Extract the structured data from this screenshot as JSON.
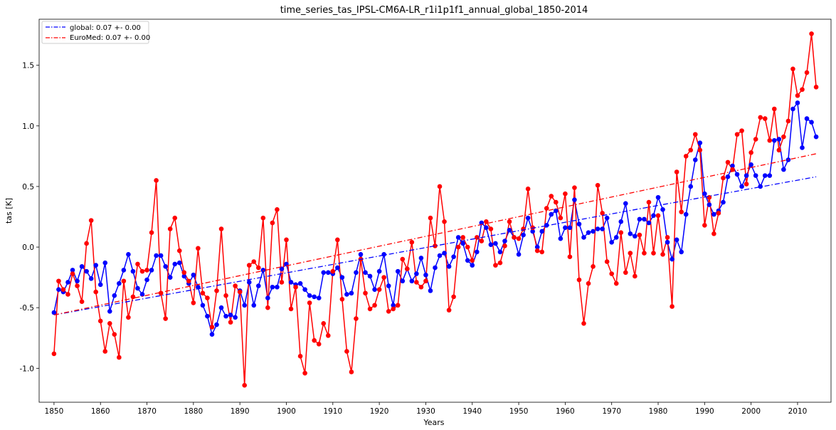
{
  "chart_data": {
    "type": "line",
    "title": "time_series_tas_IPSL-CM6A-LR_r1i1p1f1_annual_global_1850-2014",
    "xlabel": "Years",
    "ylabel": "tas [K]",
    "xlim": [
      1846.8,
      2017.2
    ],
    "ylim": [
      -1.28,
      1.88
    ],
    "x_ticks": [
      1850,
      1860,
      1870,
      1880,
      1890,
      1900,
      1910,
      1920,
      1930,
      1940,
      1950,
      1960,
      1970,
      1980,
      1990,
      2000,
      2010
    ],
    "y_ticks": [
      -1.0,
      -0.5,
      0.0,
      0.5,
      1.0,
      1.5
    ],
    "grid": false,
    "legend_position": "top-left",
    "x_start": 1850,
    "series": [
      {
        "name": "global",
        "color": "#0000ff",
        "values": [
          -0.54,
          -0.35,
          -0.37,
          -0.29,
          -0.19,
          -0.28,
          -0.16,
          -0.2,
          -0.26,
          -0.15,
          -0.31,
          -0.13,
          -0.53,
          -0.4,
          -0.3,
          -0.19,
          -0.06,
          -0.2,
          -0.34,
          -0.39,
          -0.27,
          -0.19,
          -0.07,
          -0.07,
          -0.16,
          -0.25,
          -0.14,
          -0.13,
          -0.24,
          -0.3,
          -0.23,
          -0.33,
          -0.48,
          -0.57,
          -0.72,
          -0.64,
          -0.5,
          -0.57,
          -0.56,
          -0.58,
          -0.36,
          -0.48,
          -0.29,
          -0.48,
          -0.32,
          -0.19,
          -0.42,
          -0.33,
          -0.33,
          -0.18,
          -0.14,
          -0.29,
          -0.31,
          -0.3,
          -0.35,
          -0.4,
          -0.41,
          -0.42,
          -0.21,
          -0.21,
          -0.22,
          -0.17,
          -0.25,
          -0.39,
          -0.38,
          -0.21,
          -0.06,
          -0.21,
          -0.24,
          -0.35,
          -0.2,
          -0.06,
          -0.32,
          -0.48,
          -0.2,
          -0.28,
          -0.18,
          -0.28,
          -0.22,
          -0.09,
          -0.23,
          -0.36,
          -0.17,
          -0.07,
          -0.05,
          -0.16,
          -0.08,
          0.08,
          0.03,
          -0.11,
          -0.15,
          -0.04,
          0.2,
          0.16,
          0.02,
          0.03,
          -0.04,
          0.05,
          0.14,
          0.08,
          -0.06,
          0.1,
          0.24,
          0.13,
          0.0,
          0.13,
          0.18,
          0.27,
          0.3,
          0.07,
          0.16,
          0.16,
          0.39,
          0.19,
          0.08,
          0.12,
          0.13,
          0.15,
          0.15,
          0.24,
          0.04,
          0.08,
          0.21,
          0.36,
          0.11,
          0.09,
          0.23,
          0.23,
          0.2,
          0.26,
          0.41,
          0.31,
          0.04,
          -0.1,
          0.06,
          -0.04,
          0.27,
          0.5,
          0.72,
          0.86,
          0.44,
          0.35,
          0.27,
          0.3,
          0.37,
          0.58,
          0.67,
          0.6,
          0.5,
          0.59,
          0.68,
          0.59,
          0.5,
          0.59,
          0.59,
          0.88,
          0.89,
          0.64,
          0.72,
          1.14,
          1.19,
          0.82,
          1.06,
          1.03,
          0.91
        ]
      },
      {
        "name": "EuroMed",
        "color": "#ff0000",
        "values": [
          -0.88,
          -0.28,
          -0.35,
          -0.39,
          -0.22,
          -0.32,
          -0.45,
          0.03,
          0.22,
          -0.37,
          -0.61,
          -0.86,
          -0.63,
          -0.72,
          -0.91,
          -0.28,
          -0.58,
          -0.41,
          -0.14,
          -0.2,
          -0.19,
          0.12,
          0.55,
          -0.38,
          -0.59,
          0.15,
          0.24,
          -0.03,
          -0.21,
          -0.28,
          -0.46,
          -0.01,
          -0.38,
          -0.42,
          -0.66,
          -0.36,
          0.15,
          -0.4,
          -0.62,
          -0.32,
          -0.37,
          -1.14,
          -0.15,
          -0.12,
          -0.17,
          0.24,
          -0.5,
          0.2,
          0.31,
          -0.29,
          0.06,
          -0.51,
          -0.33,
          -0.9,
          -1.04,
          -0.46,
          -0.77,
          -0.8,
          -0.63,
          -0.73,
          -0.2,
          0.06,
          -0.43,
          -0.86,
          -1.03,
          -0.59,
          -0.1,
          -0.38,
          -0.51,
          -0.48,
          -0.35,
          -0.25,
          -0.53,
          -0.51,
          -0.48,
          -0.1,
          -0.18,
          0.04,
          -0.29,
          -0.33,
          -0.28,
          0.24,
          0.01,
          0.5,
          0.21,
          -0.52,
          -0.41,
          0.0,
          0.08,
          0.0,
          -0.11,
          0.08,
          0.05,
          0.21,
          0.15,
          -0.15,
          -0.13,
          0.01,
          0.21,
          0.08,
          0.07,
          0.15,
          0.48,
          0.16,
          -0.03,
          -0.04,
          0.32,
          0.42,
          0.37,
          0.24,
          0.44,
          -0.08,
          0.49,
          -0.27,
          -0.63,
          -0.3,
          -0.16,
          0.51,
          0.28,
          -0.12,
          -0.22,
          -0.3,
          0.12,
          -0.21,
          -0.05,
          -0.24,
          0.1,
          -0.05,
          0.37,
          -0.05,
          0.26,
          -0.06,
          0.08,
          -0.49,
          0.62,
          0.29,
          0.75,
          0.8,
          0.93,
          0.8,
          0.18,
          0.41,
          0.11,
          0.28,
          0.57,
          0.7,
          0.64,
          0.93,
          0.96,
          0.52,
          0.78,
          0.89,
          1.07,
          1.06,
          0.88,
          1.14,
          0.8,
          0.91,
          1.04,
          1.47,
          1.25,
          1.3,
          1.44,
          1.76,
          1.32
        ]
      }
    ],
    "trend_lines": [
      {
        "name": "global: 0.07 +- 0.00",
        "color": "#0000ff",
        "x": [
          1850,
          2014
        ],
        "y": [
          -0.56,
          0.58
        ]
      },
      {
        "name": "EuroMed: 0.07 +- 0.00",
        "color": "#ff0000",
        "x": [
          1850,
          2014
        ],
        "y": [
          -0.56,
          0.77
        ]
      }
    ]
  }
}
